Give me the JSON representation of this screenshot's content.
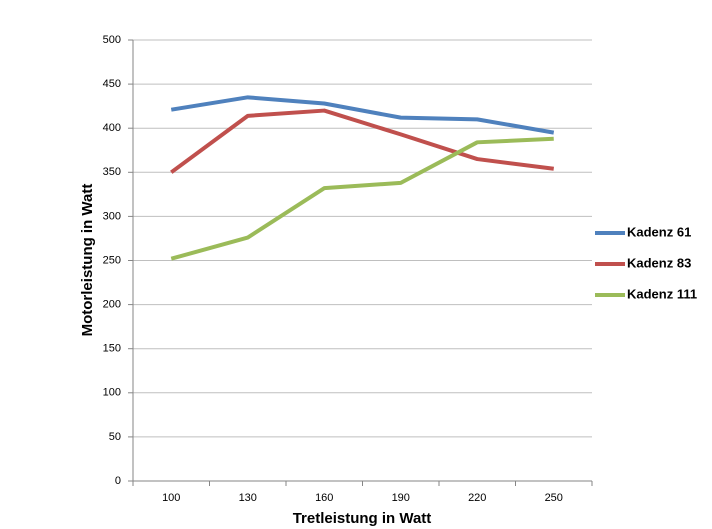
{
  "chart_data": {
    "type": "line",
    "categories": [
      "100",
      "130",
      "160",
      "190",
      "220",
      "250"
    ],
    "series": [
      {
        "name": "Kadenz 61",
        "color": "#4f81bd",
        "values": [
          421,
          435,
          428,
          412,
          410,
          395
        ]
      },
      {
        "name": "Kadenz 83",
        "color": "#c0504d",
        "values": [
          350,
          414,
          420,
          393,
          365,
          354
        ]
      },
      {
        "name": "Kadenz 111",
        "color": "#9bbb59",
        "values": [
          252,
          276,
          332,
          338,
          384,
          388
        ]
      }
    ],
    "x_label": "Tretleistung in Watt",
    "y_label": "Motorleistung in Watt",
    "ylim": [
      0,
      500
    ],
    "yticks": [
      0,
      50,
      100,
      150,
      200,
      250,
      300,
      350,
      400,
      450,
      500
    ],
    "grid": true,
    "legend": "right"
  }
}
